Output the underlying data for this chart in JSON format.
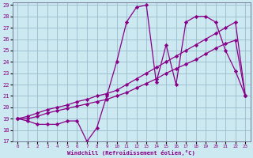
{
  "xlabel": "Windchill (Refroidissement éolien,°C)",
  "bg_color": "#cce8f0",
  "line_color": "#880088",
  "grid_color": "#99bbcc",
  "xlim": [
    -0.5,
    23.5
  ],
  "ylim": [
    17,
    29.2
  ],
  "yticks": [
    17,
    18,
    19,
    20,
    21,
    22,
    23,
    24,
    25,
    26,
    27,
    28,
    29
  ],
  "xticks": [
    0,
    1,
    2,
    3,
    4,
    5,
    6,
    7,
    8,
    9,
    10,
    11,
    12,
    13,
    14,
    15,
    16,
    17,
    18,
    19,
    20,
    21,
    22,
    23
  ],
  "line1_x": [
    0,
    1,
    2,
    3,
    4,
    5,
    6,
    7,
    8,
    9,
    10,
    11,
    12,
    13,
    14,
    15,
    16,
    17,
    18,
    19,
    20,
    21,
    22,
    23
  ],
  "line1_y": [
    19,
    18.8,
    18.5,
    18.5,
    18.5,
    18.8,
    18.8,
    17.0,
    18.2,
    21.0,
    24.0,
    27.5,
    28.8,
    29.0,
    22.2,
    25.5,
    22.0,
    27.5,
    28.0,
    28.0,
    27.5,
    25.0,
    23.2,
    21.0
  ],
  "line2_x": [
    0,
    1,
    2,
    3,
    4,
    5,
    6,
    7,
    8,
    9,
    10,
    11,
    12,
    13,
    14,
    15,
    16,
    17,
    18,
    19,
    20,
    21,
    22,
    23
  ],
  "line2_y": [
    19.0,
    19.2,
    19.5,
    19.8,
    20.0,
    20.2,
    20.5,
    20.7,
    21.0,
    21.2,
    21.5,
    22.0,
    22.5,
    23.0,
    23.5,
    24.0,
    24.5,
    25.0,
    25.5,
    26.0,
    26.5,
    27.0,
    27.5,
    21.0
  ],
  "line3_x": [
    0,
    1,
    2,
    3,
    4,
    5,
    6,
    7,
    8,
    9,
    10,
    11,
    12,
    13,
    14,
    15,
    16,
    17,
    18,
    19,
    20,
    21,
    22,
    23
  ],
  "line3_y": [
    19.0,
    19.0,
    19.2,
    19.5,
    19.7,
    19.9,
    20.1,
    20.3,
    20.5,
    20.7,
    21.0,
    21.3,
    21.7,
    22.1,
    22.5,
    23.0,
    23.4,
    23.8,
    24.2,
    24.7,
    25.2,
    25.6,
    25.9,
    21.0
  ]
}
